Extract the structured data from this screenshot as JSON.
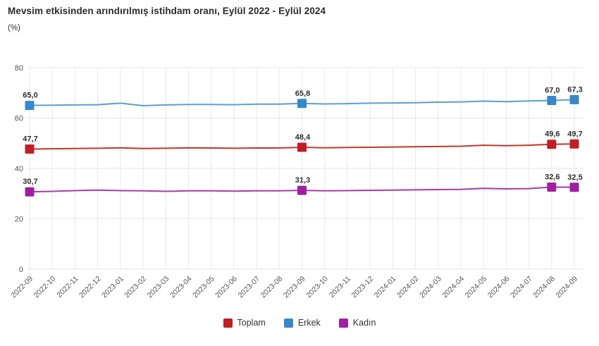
{
  "header": {
    "title": "Mevsim etkisinden arındırılmış istihdam oranı, Eylül 2022 - Eylül 2024",
    "unit_label": "(%)"
  },
  "chart_data": {
    "type": "line",
    "title": "Mevsim etkisinden arındırılmış istihdam oranı, Eylül 2022 - Eylül 2024",
    "ylabel": "(%)",
    "ylim": [
      0,
      80
    ],
    "yticks": [
      0,
      20,
      40,
      60,
      80
    ],
    "grid": true,
    "legend_position": "bottom",
    "x": [
      "2022-09",
      "2022-10",
      "2022-11",
      "2022-12",
      "2023-01",
      "2023-02",
      "2023-03",
      "2023-04",
      "2023-05",
      "2023-06",
      "2023-07",
      "2023-08",
      "2023-09",
      "2023-10",
      "2023-11",
      "2023-12",
      "2024-01",
      "2024-02",
      "2024-03",
      "2024-04",
      "2024-05",
      "2024-06",
      "2024-07",
      "2024-08",
      "2024-09"
    ],
    "marker_indices": [
      0,
      12,
      23,
      24
    ],
    "series": [
      {
        "key": "toplam",
        "name": "Toplam",
        "color": "#bf1e24",
        "line_color": "#c0392b",
        "values": [
          47.7,
          47.8,
          47.9,
          48.0,
          48.2,
          47.9,
          48.0,
          48.2,
          48.1,
          48.0,
          48.1,
          48.1,
          48.4,
          48.2,
          48.3,
          48.4,
          48.5,
          48.6,
          48.7,
          48.8,
          49.2,
          49.0,
          49.2,
          49.6,
          49.7
        ],
        "point_labels": {
          "0": "47,7",
          "12": "48,4",
          "23": "49,6",
          "24": "49,7"
        }
      },
      {
        "key": "erkek",
        "name": "Erkek",
        "color": "#3489c8",
        "line_color": "#5b9fd4",
        "values": [
          65.0,
          65.1,
          65.2,
          65.3,
          65.9,
          64.9,
          65.2,
          65.4,
          65.4,
          65.3,
          65.5,
          65.5,
          65.8,
          65.6,
          65.7,
          65.9,
          66.0,
          66.1,
          66.3,
          66.4,
          66.7,
          66.5,
          66.8,
          67.0,
          67.3
        ],
        "point_labels": {
          "0": "65,0",
          "12": "65,8",
          "23": "67,0",
          "24": "67,3"
        }
      },
      {
        "key": "kadin",
        "name": "Kadın",
        "color": "#9e1fa0",
        "line_color": "#a93ba9",
        "values": [
          30.7,
          30.9,
          31.2,
          31.4,
          31.2,
          31.1,
          30.9,
          31.1,
          31.1,
          31.0,
          31.1,
          31.1,
          31.3,
          31.1,
          31.2,
          31.3,
          31.4,
          31.5,
          31.6,
          31.7,
          32.1,
          31.9,
          32.0,
          32.6,
          32.5
        ],
        "point_labels": {
          "0": "30,7",
          "12": "31,3",
          "23": "32,6",
          "24": "32,5"
        }
      }
    ]
  }
}
